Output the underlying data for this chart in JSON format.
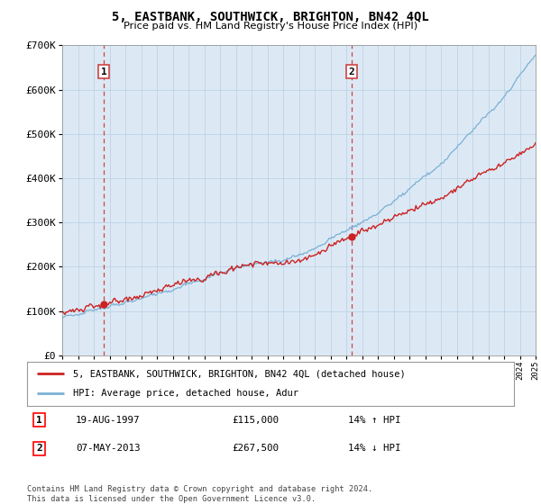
{
  "title": "5, EASTBANK, SOUTHWICK, BRIGHTON, BN42 4QL",
  "subtitle": "Price paid vs. HM Land Registry's House Price Index (HPI)",
  "legend_label_red": "5, EASTBANK, SOUTHWICK, BRIGHTON, BN42 4QL (detached house)",
  "legend_label_blue": "HPI: Average price, detached house, Adur",
  "annotation1_date": "19-AUG-1997",
  "annotation1_price": "£115,000",
  "annotation1_hpi": "14% ↑ HPI",
  "annotation2_date": "07-MAY-2013",
  "annotation2_price": "£267,500",
  "annotation2_hpi": "14% ↓ HPI",
  "footer": "Contains HM Land Registry data © Crown copyright and database right 2024.\nThis data is licensed under the Open Government Licence v3.0.",
  "ylim": [
    0,
    700000
  ],
  "yticks": [
    0,
    100000,
    200000,
    300000,
    400000,
    500000,
    600000,
    700000
  ],
  "ytick_labels": [
    "£0",
    "£100K",
    "£200K",
    "£300K",
    "£400K",
    "£500K",
    "£600K",
    "£700K"
  ],
  "start_year": 1995,
  "end_year": 2025,
  "transaction1_year": 1997.63,
  "transaction1_value": 115000,
  "transaction2_year": 2013.35,
  "transaction2_value": 267500,
  "bg_color": "#dce9f5",
  "red_color": "#cc2222",
  "blue_color": "#7ab0d4",
  "vline_color": "#cc4444",
  "grid_color": "#b8cfe0"
}
